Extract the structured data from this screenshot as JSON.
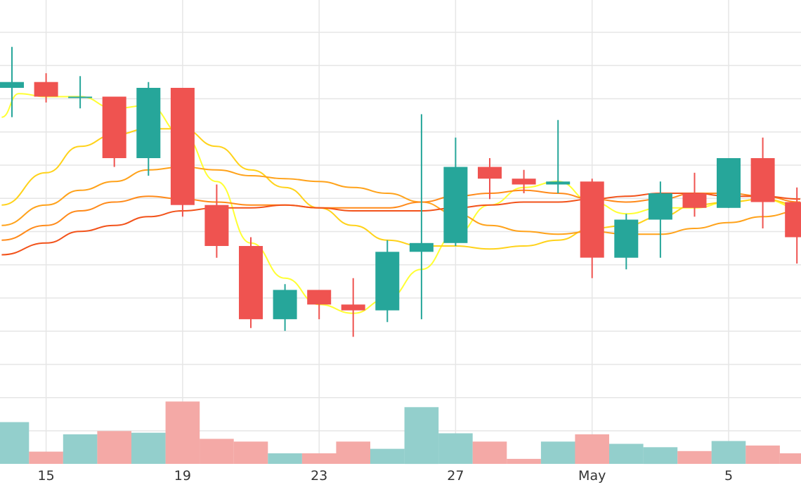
{
  "chart_data": {
    "type": "candlestick",
    "x_tick_labels": [
      "15",
      "19",
      "23",
      "27",
      "May",
      "5"
    ],
    "x_ticks": [
      {
        "label": "15",
        "day": 15
      },
      {
        "label": "19",
        "day": 19
      },
      {
        "label": "23",
        "day": 23
      },
      {
        "label": "27",
        "day": 27
      },
      {
        "label": "May",
        "day": 31
      },
      {
        "label": "5",
        "day": 35
      }
    ],
    "grid": true,
    "x_range": [
      13.65,
      37.12
    ],
    "price_range": [
      -1.4,
      13.0
    ],
    "volume_max": 12,
    "colors": {
      "up": "#26a69a",
      "down": "#ef5350",
      "volume_up": "#93cfcc",
      "volume_down": "#f4a9a6",
      "grid": "#e6e6e6",
      "ma_lines": [
        "#ffff33",
        "#ffd21a",
        "#ffa21a",
        "#ff8a1a",
        "#f2521a"
      ]
    },
    "candles": [
      {
        "day": 14,
        "open": 10.0,
        "high": 11.4,
        "low": 9.0,
        "close": 10.2
      },
      {
        "day": 15,
        "open": 10.2,
        "high": 10.5,
        "low": 9.5,
        "close": 9.7
      },
      {
        "day": 16,
        "open": 9.7,
        "high": 10.4,
        "low": 9.3,
        "close": 9.7
      },
      {
        "day": 17,
        "open": 9.7,
        "high": 9.7,
        "low": 7.3,
        "close": 7.6
      },
      {
        "day": 18,
        "open": 7.6,
        "high": 10.2,
        "low": 7.0,
        "close": 10.0
      },
      {
        "day": 19,
        "open": 10.0,
        "high": 10.0,
        "low": 5.6,
        "close": 6.0
      },
      {
        "day": 20,
        "open": 6.0,
        "high": 6.7,
        "low": 4.2,
        "close": 4.6
      },
      {
        "day": 21,
        "open": 4.6,
        "high": 4.9,
        "low": 1.8,
        "close": 2.1
      },
      {
        "day": 22,
        "open": 2.1,
        "high": 3.3,
        "low": 1.7,
        "close": 3.1
      },
      {
        "day": 23,
        "open": 3.1,
        "high": 3.1,
        "low": 2.1,
        "close": 2.6
      },
      {
        "day": 24,
        "open": 2.6,
        "high": 3.5,
        "low": 1.5,
        "close": 2.4
      },
      {
        "day": 25,
        "open": 2.4,
        "high": 4.8,
        "low": 2.0,
        "close": 4.4
      },
      {
        "day": 26,
        "open": 4.4,
        "high": 9.1,
        "low": 2.1,
        "close": 4.7
      },
      {
        "day": 27,
        "open": 4.7,
        "high": 8.3,
        "low": 4.6,
        "close": 7.3
      },
      {
        "day": 28,
        "open": 7.3,
        "high": 7.6,
        "low": 6.2,
        "close": 6.9
      },
      {
        "day": 29,
        "open": 6.9,
        "high": 7.2,
        "low": 6.4,
        "close": 6.7
      },
      {
        "day": 30,
        "open": 6.7,
        "high": 8.9,
        "low": 6.4,
        "close": 6.8
      },
      {
        "day": 31,
        "open": 6.8,
        "high": 6.9,
        "low": 3.5,
        "close": 4.2
      },
      {
        "day": 32,
        "open": 4.2,
        "high": 5.7,
        "low": 3.8,
        "close": 5.5
      },
      {
        "day": 33,
        "open": 5.5,
        "high": 6.8,
        "low": 4.2,
        "close": 6.4
      },
      {
        "day": 34,
        "open": 6.4,
        "high": 7.1,
        "low": 5.6,
        "close": 5.9
      },
      {
        "day": 35,
        "open": 5.9,
        "high": 7.6,
        "low": 5.9,
        "close": 7.6
      },
      {
        "day": 36,
        "open": 7.6,
        "high": 8.3,
        "low": 5.2,
        "close": 6.1
      },
      {
        "day": 37,
        "open": 6.1,
        "high": 6.6,
        "low": 4.0,
        "close": 4.9
      }
    ],
    "volumes": [
      {
        "day": 14,
        "value": 7.5,
        "direction": "up"
      },
      {
        "day": 15,
        "value": 2.2,
        "direction": "down"
      },
      {
        "day": 16,
        "value": 5.3,
        "direction": "up"
      },
      {
        "day": 17,
        "value": 5.9,
        "direction": "down"
      },
      {
        "day": 18,
        "value": 5.6,
        "direction": "up"
      },
      {
        "day": 19,
        "value": 11.2,
        "direction": "down"
      },
      {
        "day": 20,
        "value": 4.5,
        "direction": "down"
      },
      {
        "day": 21,
        "value": 4.0,
        "direction": "down"
      },
      {
        "day": 22,
        "value": 1.9,
        "direction": "up"
      },
      {
        "day": 23,
        "value": 1.9,
        "direction": "down"
      },
      {
        "day": 24,
        "value": 4.0,
        "direction": "down"
      },
      {
        "day": 25,
        "value": 2.7,
        "direction": "up"
      },
      {
        "day": 26,
        "value": 10.2,
        "direction": "up"
      },
      {
        "day": 27,
        "value": 5.5,
        "direction": "up"
      },
      {
        "day": 28,
        "value": 4.0,
        "direction": "down"
      },
      {
        "day": 29,
        "value": 0.9,
        "direction": "down"
      },
      {
        "day": 30,
        "value": 4.0,
        "direction": "up"
      },
      {
        "day": 31,
        "value": 5.3,
        "direction": "down"
      },
      {
        "day": 32,
        "value": 3.6,
        "direction": "up"
      },
      {
        "day": 33,
        "value": 3.0,
        "direction": "up"
      },
      {
        "day": 34,
        "value": 2.3,
        "direction": "down"
      },
      {
        "day": 35,
        "value": 4.1,
        "direction": "up"
      },
      {
        "day": 36,
        "value": 3.3,
        "direction": "down"
      },
      {
        "day": 37,
        "value": 1.9,
        "direction": "down"
      }
    ],
    "moving_averages": [
      {
        "color_index": 0,
        "points": [
          [
            13.7,
            9.0
          ],
          [
            14.2,
            9.8
          ],
          [
            15.0,
            9.7
          ],
          [
            16.0,
            9.7
          ],
          [
            17.0,
            9.3
          ],
          [
            18.0,
            9.4
          ],
          [
            19.0,
            8.4
          ],
          [
            20.0,
            6.8
          ],
          [
            21.0,
            4.7
          ],
          [
            22.0,
            3.5
          ],
          [
            23.0,
            2.6
          ],
          [
            24.0,
            2.3
          ],
          [
            25.0,
            2.8
          ],
          [
            26.0,
            3.8
          ],
          [
            27.0,
            5.0
          ],
          [
            28.0,
            6.0
          ],
          [
            29.0,
            6.6
          ],
          [
            30.0,
            6.8
          ],
          [
            31.0,
            6.1
          ],
          [
            32.0,
            5.7
          ],
          [
            33.0,
            5.9
          ],
          [
            34.0,
            5.9
          ],
          [
            35.0,
            6.1
          ],
          [
            36.0,
            6.2
          ],
          [
            37.1,
            5.9
          ]
        ]
      },
      {
        "color_index": 1,
        "points": [
          [
            13.7,
            6.0
          ],
          [
            15.0,
            7.1
          ],
          [
            16.0,
            8.0
          ],
          [
            17.0,
            8.4
          ],
          [
            18.0,
            8.6
          ],
          [
            19.0,
            8.6
          ],
          [
            20.0,
            8.0
          ],
          [
            21.0,
            7.2
          ],
          [
            22.0,
            6.6
          ],
          [
            23.0,
            5.9
          ],
          [
            24.0,
            5.3
          ],
          [
            25.0,
            4.8
          ],
          [
            26.0,
            4.6
          ],
          [
            27.0,
            4.6
          ],
          [
            28.0,
            4.5
          ],
          [
            29.0,
            4.6
          ],
          [
            30.0,
            4.8
          ],
          [
            31.0,
            5.2
          ],
          [
            32.0,
            5.3
          ],
          [
            33.0,
            5.6
          ],
          [
            34.0,
            6.0
          ],
          [
            35.0,
            6.1
          ],
          [
            36.0,
            6.2
          ],
          [
            37.1,
            6.0
          ]
        ]
      },
      {
        "color_index": 2,
        "points": [
          [
            13.7,
            5.3
          ],
          [
            15.0,
            6.0
          ],
          [
            16.0,
            6.5
          ],
          [
            17.0,
            6.8
          ],
          [
            18.0,
            7.2
          ],
          [
            19.0,
            7.3
          ],
          [
            20.0,
            7.2
          ],
          [
            21.0,
            7.0
          ],
          [
            22.0,
            6.9
          ],
          [
            23.0,
            6.8
          ],
          [
            24.0,
            6.6
          ],
          [
            25.0,
            6.4
          ],
          [
            26.0,
            6.1
          ],
          [
            27.0,
            5.7
          ],
          [
            28.0,
            5.3
          ],
          [
            29.0,
            5.1
          ],
          [
            30.0,
            5.0
          ],
          [
            31.0,
            5.1
          ],
          [
            32.0,
            5.0
          ],
          [
            33.0,
            5.0
          ],
          [
            34.0,
            5.2
          ],
          [
            35.0,
            5.4
          ],
          [
            36.0,
            5.6
          ],
          [
            37.1,
            5.8
          ]
        ]
      },
      {
        "color_index": 3,
        "points": [
          [
            13.7,
            4.8
          ],
          [
            15.0,
            5.3
          ],
          [
            16.0,
            5.8
          ],
          [
            17.0,
            6.1
          ],
          [
            18.0,
            6.3
          ],
          [
            19.0,
            6.2
          ],
          [
            20.0,
            6.1
          ],
          [
            21.0,
            6.0
          ],
          [
            22.0,
            6.0
          ],
          [
            23.0,
            5.9
          ],
          [
            24.0,
            5.9
          ],
          [
            25.0,
            5.9
          ],
          [
            26.0,
            6.1
          ],
          [
            27.0,
            6.3
          ],
          [
            28.0,
            6.4
          ],
          [
            29.0,
            6.5
          ],
          [
            30.0,
            6.4
          ],
          [
            31.0,
            6.2
          ],
          [
            32.0,
            6.1
          ],
          [
            33.0,
            6.2
          ],
          [
            34.0,
            6.4
          ],
          [
            35.0,
            6.4
          ],
          [
            36.0,
            6.3
          ],
          [
            37.1,
            6.1
          ]
        ]
      },
      {
        "color_index": 4,
        "points": [
          [
            13.7,
            4.3
          ],
          [
            15.0,
            4.7
          ],
          [
            16.0,
            5.1
          ],
          [
            17.0,
            5.3
          ],
          [
            18.0,
            5.6
          ],
          [
            19.0,
            5.8
          ],
          [
            20.0,
            5.9
          ],
          [
            21.0,
            5.9
          ],
          [
            22.0,
            6.0
          ],
          [
            23.0,
            5.9
          ],
          [
            24.0,
            5.8
          ],
          [
            25.0,
            5.8
          ],
          [
            26.0,
            5.8
          ],
          [
            27.0,
            5.9
          ],
          [
            28.0,
            6.0
          ],
          [
            29.0,
            6.1
          ],
          [
            30.0,
            6.1
          ],
          [
            31.0,
            6.2
          ],
          [
            32.0,
            6.3
          ],
          [
            33.0,
            6.4
          ],
          [
            34.0,
            6.4
          ],
          [
            35.0,
            6.3
          ],
          [
            36.0,
            6.3
          ],
          [
            37.1,
            6.2
          ]
        ]
      }
    ]
  }
}
